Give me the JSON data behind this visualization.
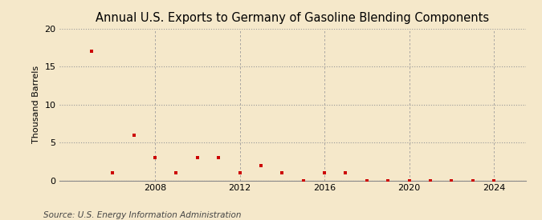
{
  "title": "Annual U.S. Exports to Germany of Gasoline Blending Components",
  "ylabel": "Thousand Barrels",
  "source": "Source: U.S. Energy Information Administration",
  "background_color": "#f5e8ca",
  "marker_color": "#cc0000",
  "years": [
    2005,
    2006,
    2007,
    2008,
    2009,
    2010,
    2011,
    2012,
    2013,
    2014,
    2015,
    2016,
    2017,
    2018,
    2019,
    2020,
    2021,
    2022,
    2023,
    2024
  ],
  "values": [
    17,
    1,
    6,
    3,
    1,
    3,
    3,
    1,
    2,
    1,
    0,
    1,
    1,
    0,
    0,
    0,
    0,
    0,
    0,
    0
  ],
  "ylim": [
    0,
    20
  ],
  "yticks": [
    0,
    5,
    10,
    15,
    20
  ],
  "xticks": [
    2008,
    2012,
    2016,
    2020,
    2024
  ],
  "xlim": [
    2003.5,
    2025.5
  ],
  "grid_color": "#999999",
  "title_fontsize": 10.5,
  "label_fontsize": 8,
  "tick_fontsize": 8,
  "source_fontsize": 7.5
}
